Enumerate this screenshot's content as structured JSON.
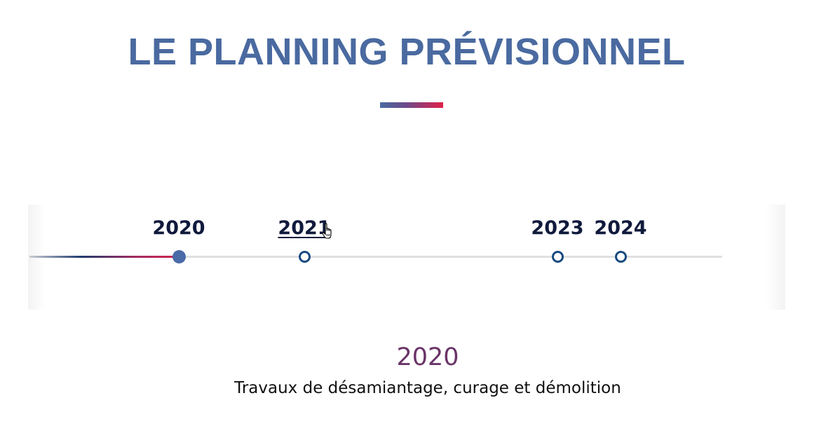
{
  "page": {
    "title": "LE PLANNING PRÉVISIONNEL"
  },
  "timeline": {
    "years": [
      "2020",
      "2021",
      "2023",
      "2024"
    ],
    "active_year": "2020",
    "hovered_year": "2021"
  },
  "detail": {
    "year": "2020",
    "description": "Travaux de désamiantage, curage et démolition"
  },
  "colors": {
    "title": "#4a6aa0",
    "accent_start": "#4a6aa0",
    "accent_end": "#e0204a",
    "year_label": "#101a3c",
    "dot_border": "#184a80",
    "detail_year": "#6a3468"
  }
}
